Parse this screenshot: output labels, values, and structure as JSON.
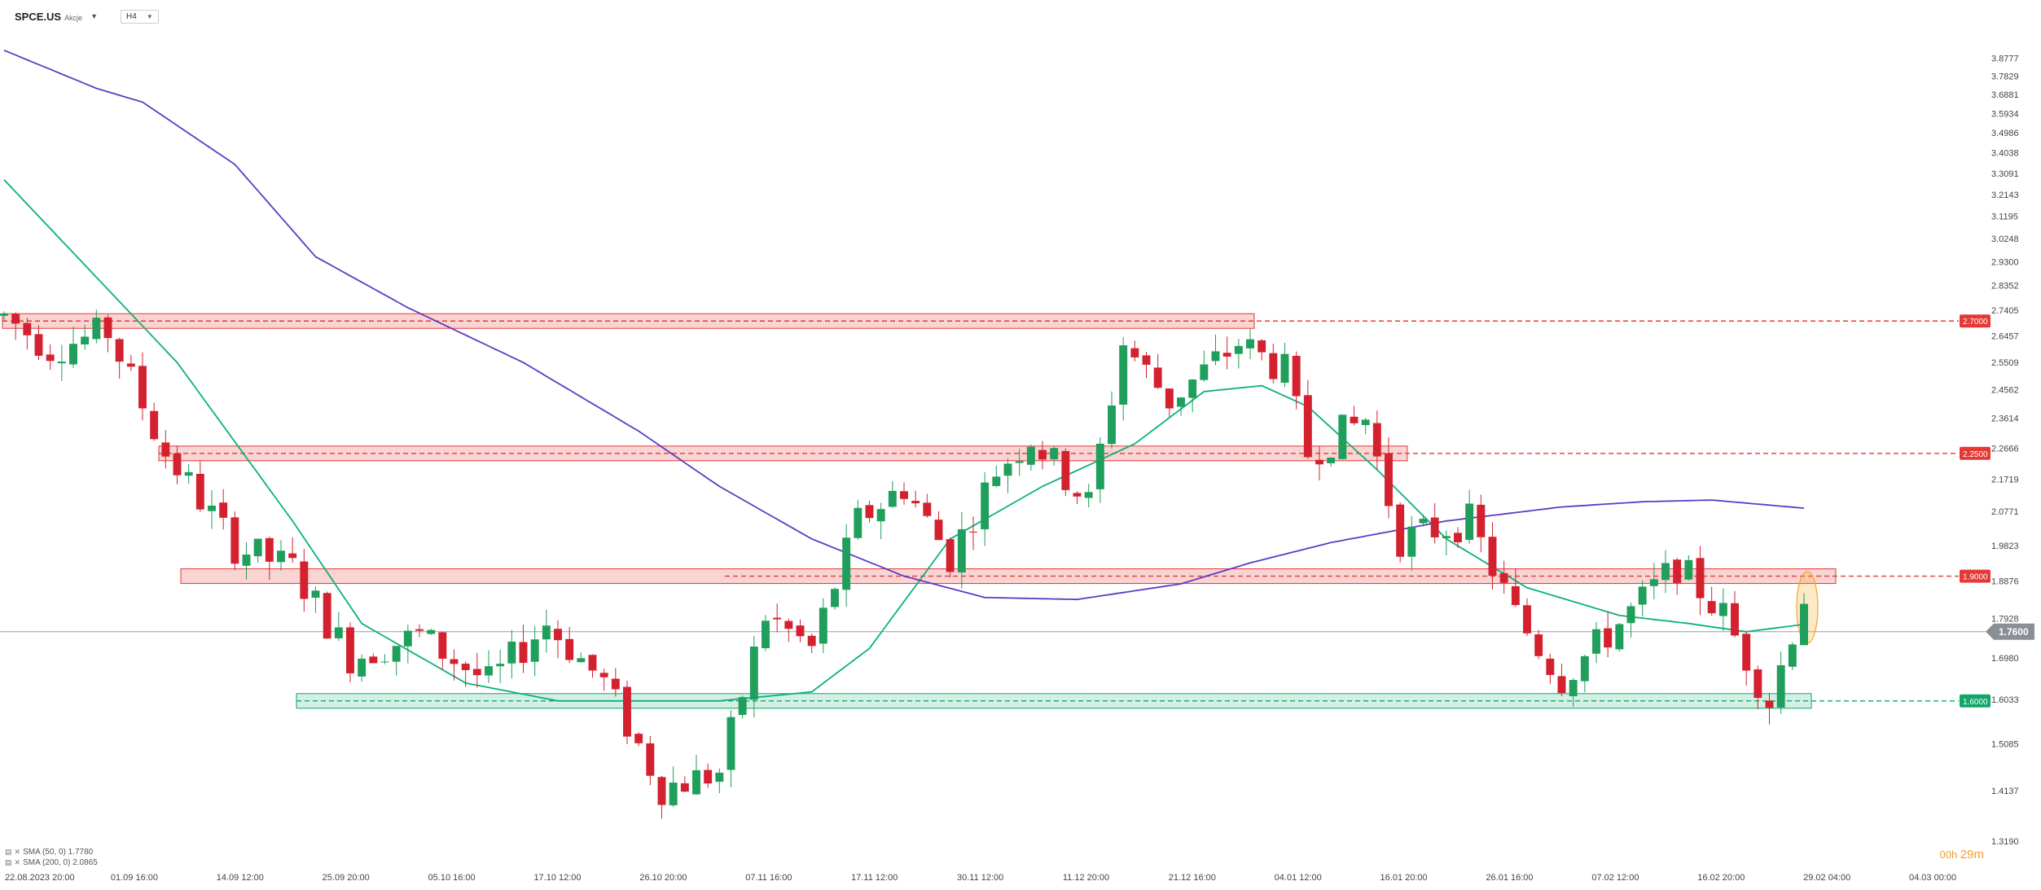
{
  "header": {
    "symbol": "SPCE.US",
    "symbol_type": "Akcje",
    "timeframe": "H4"
  },
  "legend": [
    {
      "label": "SMA (50, 0) 1.7780",
      "color": "#0bb07b"
    },
    {
      "label": "SMA (200, 0) 2.0865",
      "color": "#5b3cc4"
    }
  ],
  "timer": {
    "hours": "00h",
    "minutes": "29m"
  },
  "colors": {
    "bull": "#1f9e5c",
    "bear": "#d4212f",
    "sma50": "#0bb07b",
    "sma200": "#5b3cc4",
    "resistance": "#e53935",
    "support": "#13a66b",
    "highlight": "#f5a623"
  },
  "chart_data": {
    "type": "candlestick",
    "timeframe": "H4",
    "y_scale": "log",
    "ylim": [
      1.319,
      3.95
    ],
    "y_ticks": [
      "3.8777",
      "3.7829",
      "3.6881",
      "3.5934",
      "3.4986",
      "3.4038",
      "3.3091",
      "3.2143",
      "3.1195",
      "3.0248",
      "2.9300",
      "2.8352",
      "2.7405",
      "2.6457",
      "2.5509",
      "2.4562",
      "2.3614",
      "2.2666",
      "2.1719",
      "2.0771",
      "1.9823",
      "1.8876",
      "1.7928",
      "1.6980",
      "1.6033",
      "1.5085",
      "1.4137",
      "1.3190"
    ],
    "x_ticks": [
      "22.08.2023 20:00",
      "01.09 16:00",
      "14.09 12:00",
      "25.09 20:00",
      "05.10 16:00",
      "17.10 12:00",
      "26.10 20:00",
      "07.11 16:00",
      "17.11 12:00",
      "30.11 12:00",
      "11.12 20:00",
      "21.12 16:00",
      "04.01 12:00",
      "16.01 20:00",
      "26.01 16:00",
      "07.02 12:00",
      "16.02 20:00",
      "29.02 04:00",
      "04.03 00:00"
    ],
    "current_price": "1.7600",
    "levels": [
      {
        "price": 2.7,
        "label": "2.7000",
        "kind": "resistance"
      },
      {
        "price": 2.25,
        "label": "2.2500",
        "kind": "resistance"
      },
      {
        "price": 1.9,
        "label": "1.9000",
        "kind": "resistance"
      },
      {
        "price": 1.6,
        "label": "1.6000",
        "kind": "support"
      }
    ],
    "price_path": [
      [
        0,
        2.72
      ],
      [
        4,
        2.6
      ],
      [
        9,
        2.66
      ],
      [
        14,
        2.25
      ],
      [
        20,
        1.98
      ],
      [
        25,
        1.92
      ],
      [
        30,
        1.7
      ],
      [
        36,
        1.75
      ],
      [
        42,
        1.64
      ],
      [
        47,
        1.78
      ],
      [
        52,
        1.64
      ],
      [
        57,
        1.42
      ],
      [
        62,
        1.45
      ],
      [
        66,
        1.8
      ],
      [
        70,
        1.72
      ],
      [
        74,
        2.05
      ],
      [
        78,
        2.15
      ],
      [
        82,
        1.95
      ],
      [
        86,
        2.2
      ],
      [
        89,
        2.3
      ],
      [
        94,
        2.1
      ],
      [
        97,
        2.62
      ],
      [
        101,
        2.42
      ],
      [
        107,
        2.62
      ],
      [
        111,
        2.52
      ],
      [
        113,
        2.25
      ],
      [
        118,
        2.36
      ],
      [
        121,
        2.0
      ],
      [
        127,
        2.05
      ],
      [
        131,
        1.8
      ],
      [
        135,
        1.65
      ],
      [
        140,
        1.78
      ],
      [
        145,
        1.93
      ],
      [
        149,
        1.8
      ],
      [
        153,
        1.6
      ],
      [
        156,
        1.85
      ]
    ],
    "series": [
      {
        "name": "SMA (50, 0)",
        "points": [
          [
            0,
            3.28
          ],
          [
            15,
            2.55
          ],
          [
            25,
            2.05
          ],
          [
            31,
            1.78
          ],
          [
            40,
            1.64
          ],
          [
            48,
            1.6
          ],
          [
            62,
            1.6
          ],
          [
            70,
            1.62
          ],
          [
            75,
            1.72
          ],
          [
            82,
            2.0
          ],
          [
            90,
            2.15
          ],
          [
            98,
            2.28
          ],
          [
            104,
            2.45
          ],
          [
            109,
            2.47
          ],
          [
            113,
            2.4
          ],
          [
            119,
            2.2
          ],
          [
            125,
            2.0
          ],
          [
            132,
            1.87
          ],
          [
            140,
            1.8
          ],
          [
            146,
            1.78
          ],
          [
            151,
            1.76
          ],
          [
            156,
            1.778
          ]
        ]
      },
      {
        "name": "SMA (200, 0)",
        "points": [
          [
            0,
            3.92
          ],
          [
            8,
            3.72
          ],
          [
            12,
            3.65
          ],
          [
            20,
            3.35
          ],
          [
            27,
            2.95
          ],
          [
            35,
            2.75
          ],
          [
            45,
            2.55
          ],
          [
            55,
            2.32
          ],
          [
            62,
            2.15
          ],
          [
            70,
            2.0
          ],
          [
            78,
            1.9
          ],
          [
            85,
            1.845
          ],
          [
            93,
            1.84
          ],
          [
            102,
            1.88
          ],
          [
            108,
            1.935
          ],
          [
            115,
            1.99
          ],
          [
            125,
            2.05
          ],
          [
            135,
            2.09
          ],
          [
            142,
            2.105
          ],
          [
            148,
            2.11
          ],
          [
            156,
            2.0865
          ]
        ]
      }
    ]
  }
}
